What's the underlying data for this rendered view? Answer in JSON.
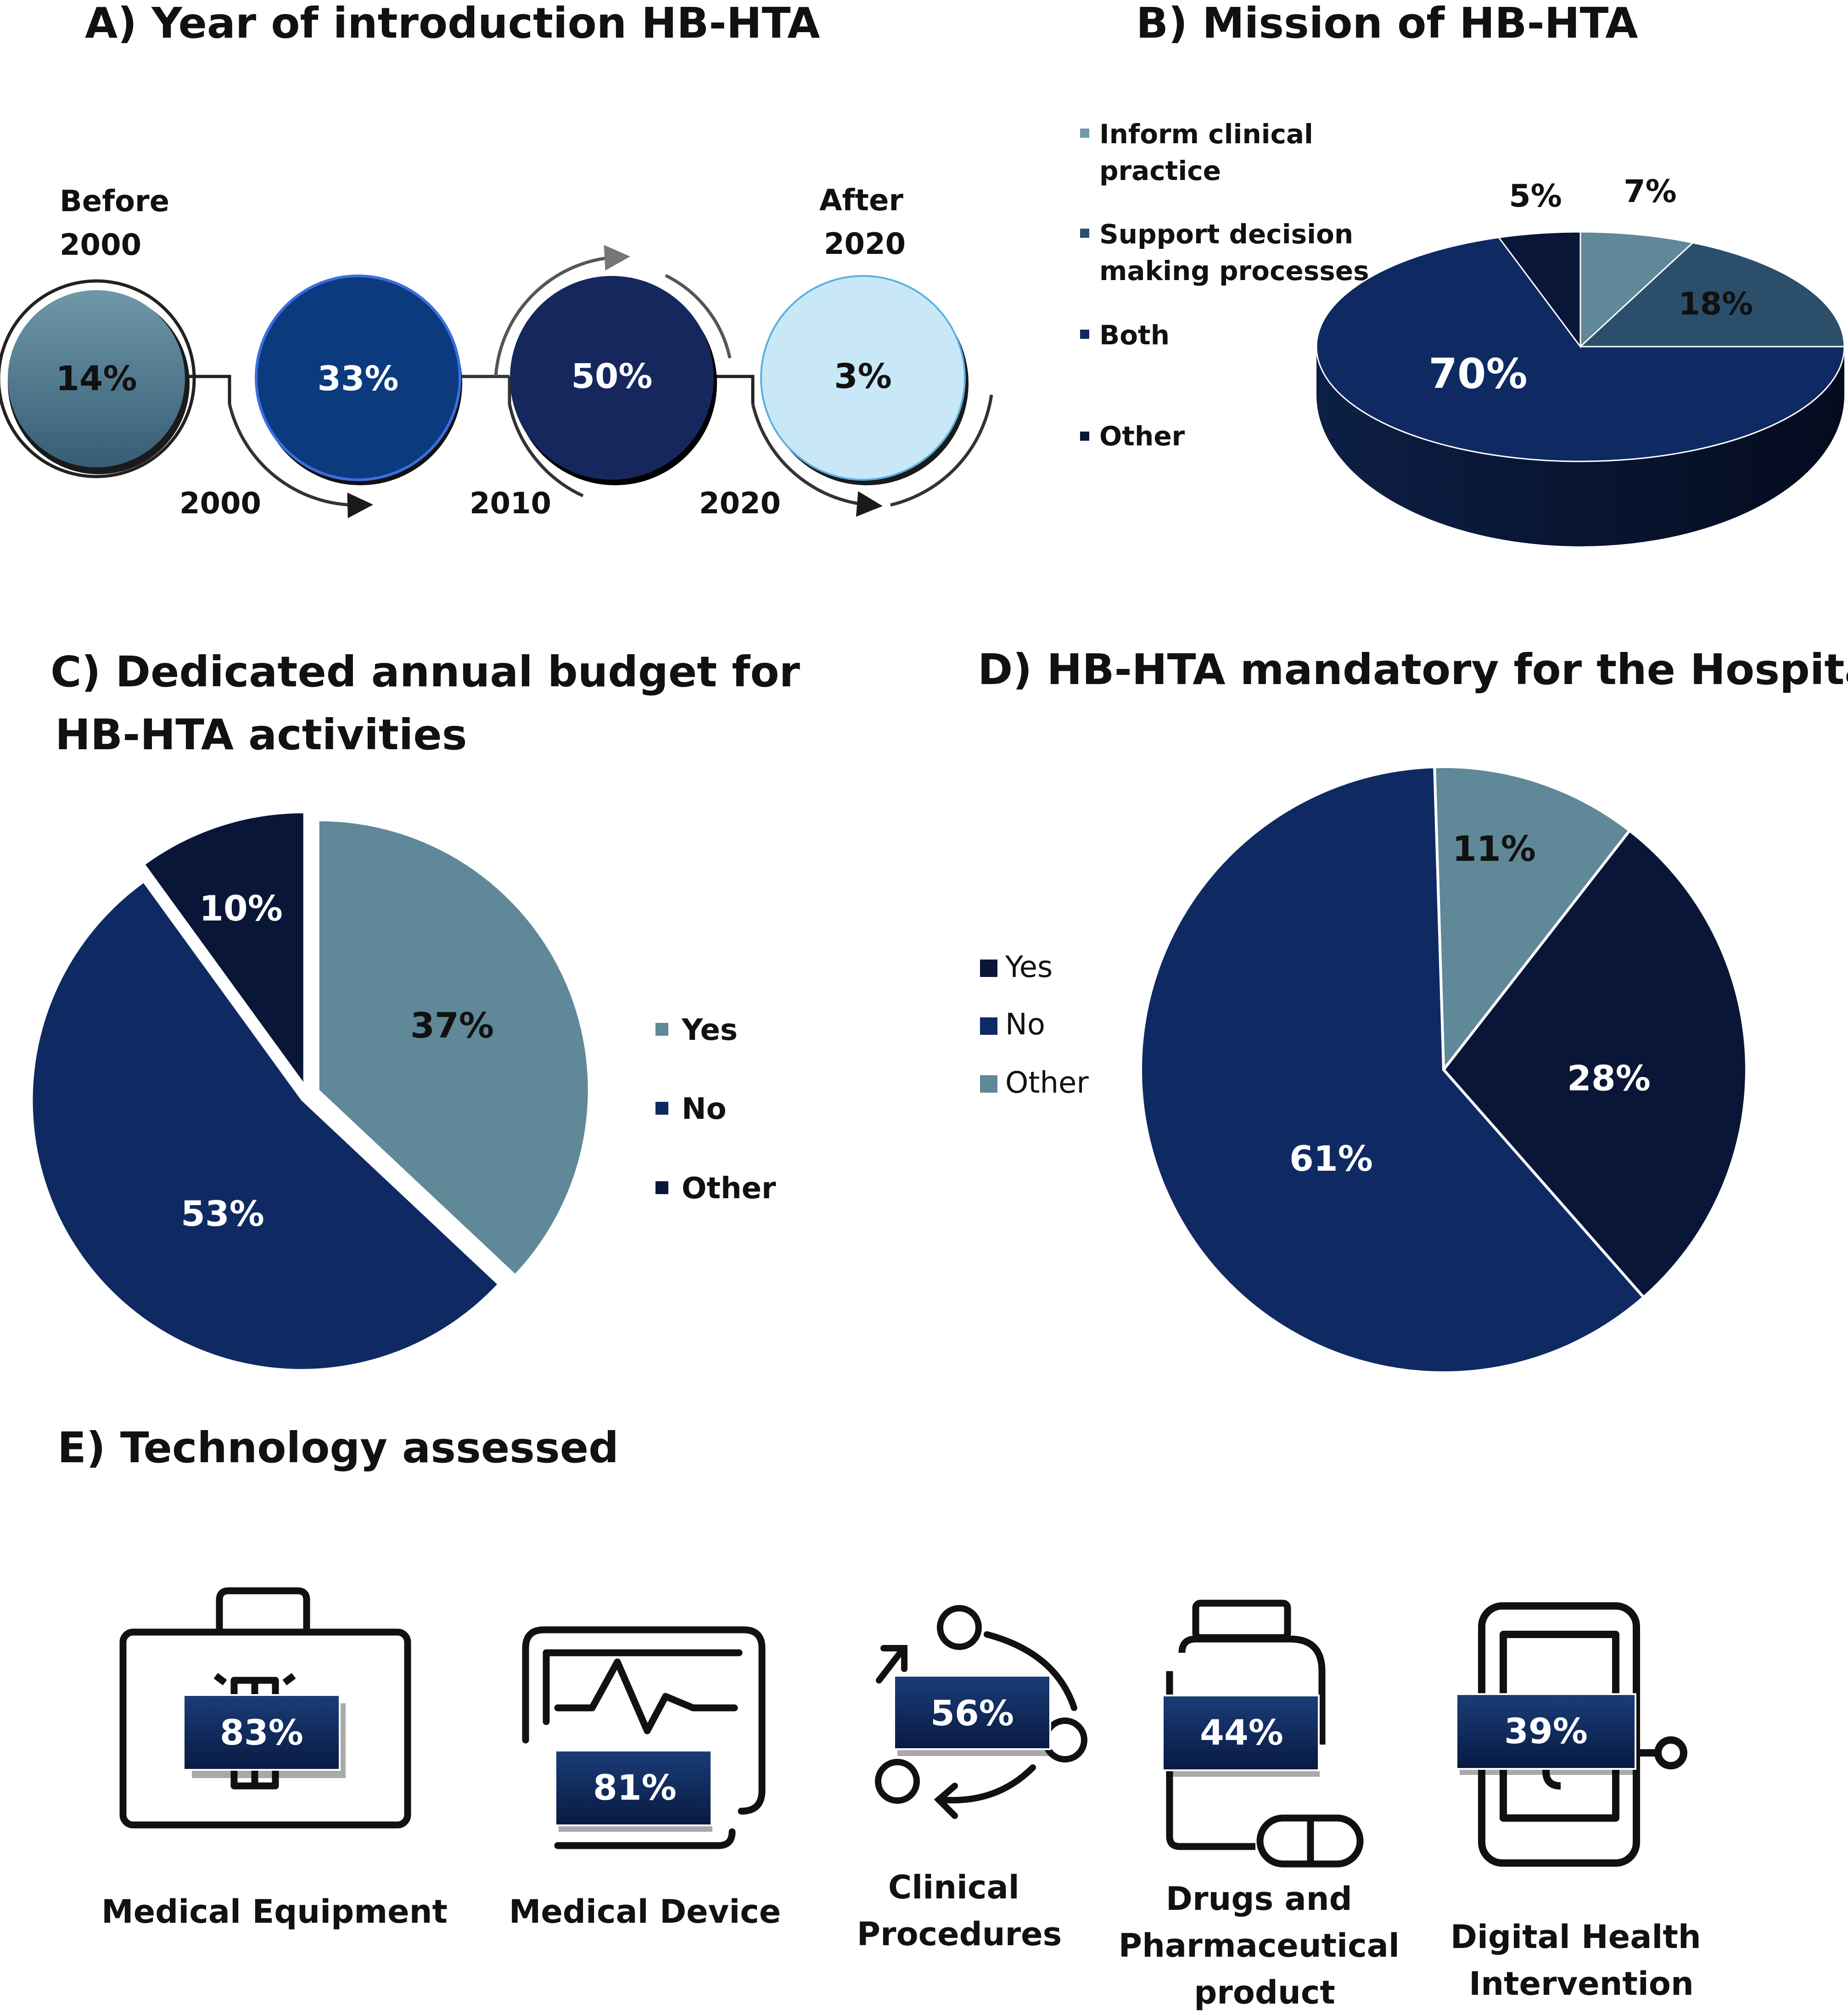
{
  "colors": {
    "slate": "#5f8898",
    "steel": "#2b4e6b",
    "navy": "#0f2a63",
    "midnight": "#0a1638",
    "blue": "#0b3a7e",
    "pale": "#c8e8f8",
    "text": "#111111"
  },
  "chart_data": [
    {
      "id": "A",
      "type": "timeline",
      "title": "A)  Year of introduction HB-HTA",
      "labels_top": [
        "Before\n2000",
        "After\n2020"
      ],
      "axis_labels": [
        "2000",
        "2010",
        "2020"
      ],
      "categories": [
        "Before 2000",
        "2000–2010",
        "2010–2020",
        "After 2020"
      ],
      "values": [
        14,
        33,
        50,
        3
      ],
      "value_labels": [
        "14%",
        "33%",
        "50%",
        "3%"
      ]
    },
    {
      "id": "B",
      "type": "pie",
      "style": "3d",
      "title": "B)  Mission of HB-HTA",
      "legend": [
        "Inform clinical practice",
        "Support decision making processes",
        "Both",
        "Other"
      ],
      "legend_position": "left",
      "categories": [
        "Inform clinical practice",
        "Support decision making processes",
        "Both",
        "Other"
      ],
      "values": [
        7,
        18,
        70,
        5
      ],
      "value_labels": [
        "7%",
        "18%",
        "70%",
        "5%"
      ]
    },
    {
      "id": "C",
      "type": "pie",
      "style": "exploded",
      "title": "C) Dedicated annual budget for HB-HTA activities",
      "title_lines": [
        "C) Dedicated annual budget for",
        "HB-HTA activities"
      ],
      "legend": [
        "Yes",
        "No",
        "Other"
      ],
      "legend_position": "right",
      "categories": [
        "Yes",
        "No",
        "Other"
      ],
      "values": [
        37,
        53,
        10
      ],
      "value_labels": [
        "37%",
        "53%",
        "10%"
      ]
    },
    {
      "id": "D",
      "type": "pie",
      "title": "D) HB-HTA mandatory for the Hospital",
      "legend": [
        "Yes",
        "No",
        "Other"
      ],
      "legend_position": "left",
      "categories": [
        "Other",
        "Yes",
        "No"
      ],
      "values": [
        11,
        28,
        61
      ],
      "value_labels": [
        "11%",
        "28%",
        "61%"
      ]
    },
    {
      "id": "E",
      "type": "icon-stats",
      "title": "E) Technology assessed",
      "categories": [
        "Medical Equipment",
        "Medical Device",
        "Clinical Procedures",
        "Drugs and Pharmaceutical product",
        "Digital Health Intervention"
      ],
      "category_lines": [
        [
          "Medical Equipment"
        ],
        [
          "Medical Device"
        ],
        [
          "Clinical",
          "Procedures"
        ],
        [
          "Drugs and",
          "Pharmaceutical",
          "product"
        ],
        [
          "Digital Health",
          "Intervention"
        ]
      ],
      "icons": [
        "toolbox-icon",
        "monitor-pulse-icon",
        "cycle-icon",
        "pill-bottle-icon",
        "smartphone-icon"
      ],
      "values": [
        83,
        81,
        56,
        44,
        39
      ],
      "value_labels": [
        "83%",
        "81%",
        "56%",
        "44%",
        "39%"
      ]
    }
  ]
}
